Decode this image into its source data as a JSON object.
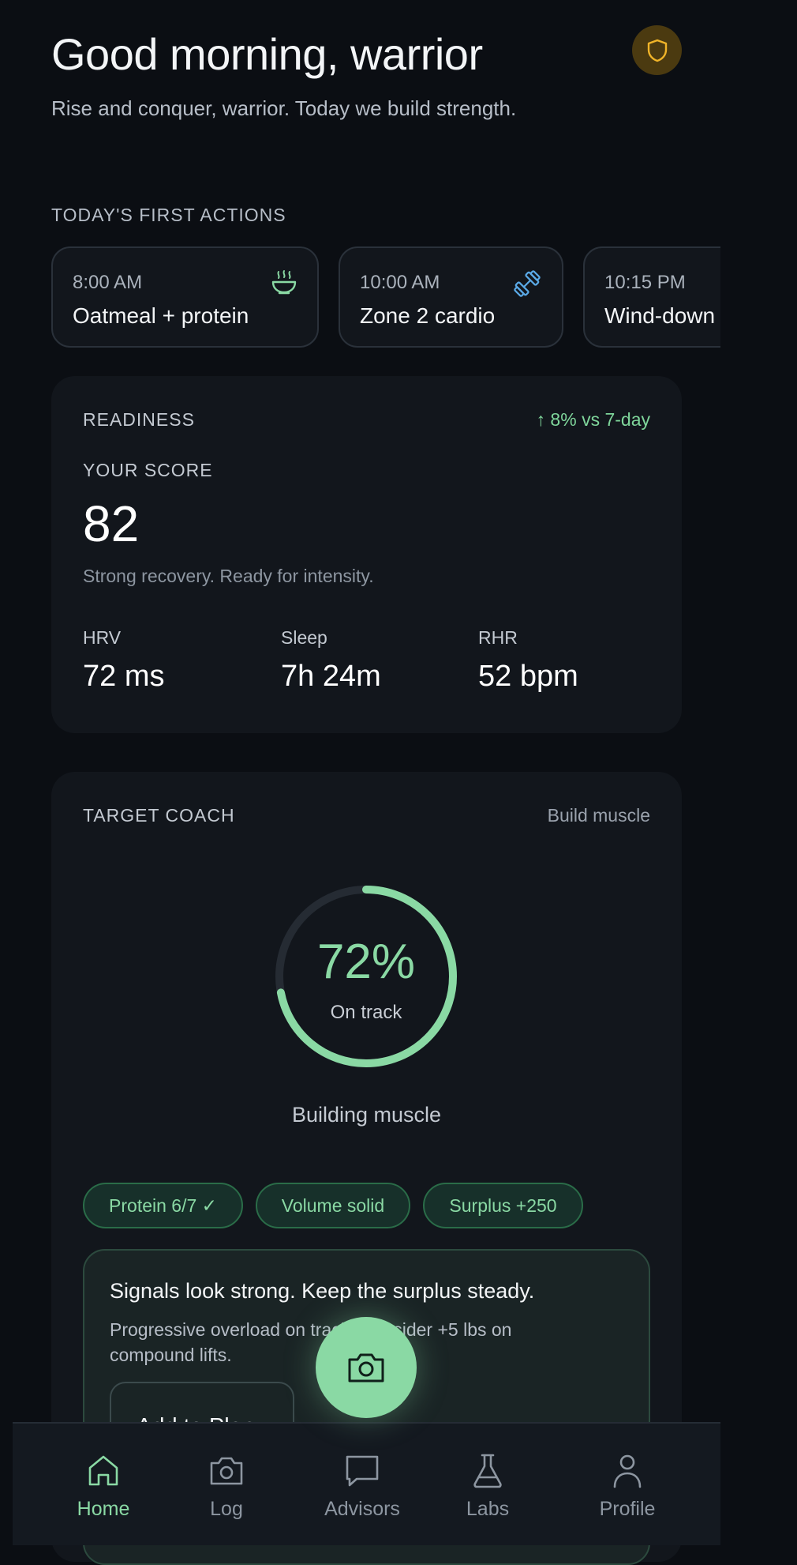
{
  "header": {
    "title": "Good morning, warrior",
    "subtitle": "Rise and conquer, warrior. Today we build strength.",
    "shield_icon": "shield-icon"
  },
  "first_actions": {
    "title": "TODAY'S FIRST ACTIONS",
    "items": [
      {
        "time": "8:00 AM",
        "label": "Oatmeal + protein",
        "icon": "bowl-icon"
      },
      {
        "time": "10:00 AM",
        "label": "Zone 2 cardio",
        "icon": "dumbbell-icon"
      },
      {
        "time": "10:15 PM",
        "label": "Wind-down",
        "icon": ""
      }
    ]
  },
  "readiness": {
    "label": "READINESS",
    "trend": "↑ 8% vs 7-day",
    "score_label": "YOUR SCORE",
    "score": "82",
    "note": "Strong recovery. Ready for intensity.",
    "metrics": [
      {
        "label": "HRV",
        "value": "72 ms"
      },
      {
        "label": "Sleep",
        "value": "7h 24m"
      },
      {
        "label": "RHR",
        "value": "52 bpm"
      }
    ]
  },
  "coach": {
    "label": "TARGET COACH",
    "goal": "Build muscle",
    "progress_percent": 72,
    "progress_text": "72%",
    "status": "On track",
    "phase": "Building muscle",
    "chips": [
      "Protein 6/7 ✓",
      "Volume solid",
      "Surplus +250"
    ],
    "insight": {
      "title": "Signals look strong. Keep the surplus steady.",
      "body": "Progressive overload on track. Consider +5 lbs on compound lifts.",
      "button": "Add to Plan"
    }
  },
  "fab": {
    "icon": "camera-icon"
  },
  "tabs": [
    {
      "label": "Home",
      "icon": "home-icon",
      "active": true
    },
    {
      "label": "Log",
      "icon": "camera-icon",
      "active": false
    },
    {
      "label": "Advisors",
      "icon": "chat-icon",
      "active": false
    },
    {
      "label": "Labs",
      "icon": "flask-icon",
      "active": false
    },
    {
      "label": "Profile",
      "icon": "person-icon",
      "active": false
    }
  ],
  "colors": {
    "background": "#0b0e13",
    "card": "#12161c",
    "accent": "#8ad9a4",
    "shield": "#f0b429",
    "icon_blue": "#5aa9e6"
  }
}
